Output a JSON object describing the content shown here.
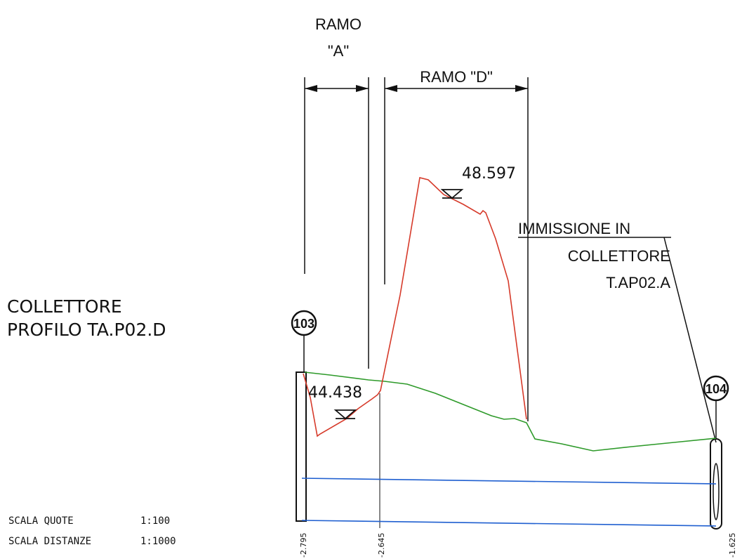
{
  "title": {
    "line1": "COLLETTORE",
    "line2": "PROFILO TA.P02.D"
  },
  "branches": {
    "a_line1": "RAMO",
    "a_line2": "\"A\"",
    "d": "RAMO \"D\""
  },
  "immission": {
    "line1": "IMMISSIONE IN",
    "line2": "COLLETTORE",
    "line3": "T.AP02.A"
  },
  "nodes": {
    "start": "103",
    "end": "104"
  },
  "water_levels": {
    "low": "44.438",
    "high": "48.597"
  },
  "depth_labels": {
    "left": "-2.795",
    "mid": "-2.645",
    "right": "-1.625"
  },
  "scale": {
    "quote_label": "SCALA QUOTE",
    "quote_value": "1:100",
    "distance_label": "SCALA DISTANZE",
    "distance_value": "1:1000"
  },
  "colors": {
    "ground_line": "#2e9a2a",
    "pipe_profile": "#d63a2a",
    "reference_lines": "#1f5fd0",
    "ink": "#111111"
  }
}
